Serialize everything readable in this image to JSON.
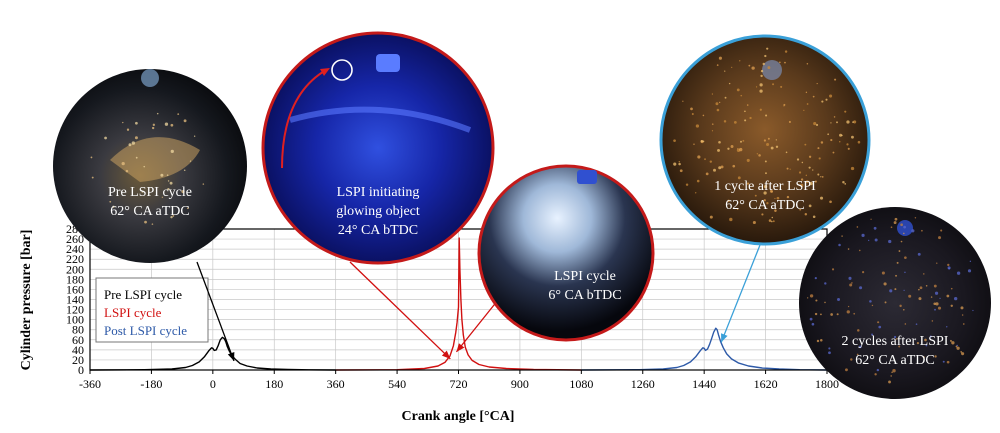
{
  "chart_data": {
    "type": "line",
    "title": "",
    "xlabel": "Crank angle [°CA]",
    "ylabel": "Cylinder pressure [bar]",
    "xlim": [
      -360,
      1800
    ],
    "ylim": [
      0,
      280
    ],
    "x_ticks": [
      -360,
      -180,
      0,
      180,
      360,
      540,
      720,
      900,
      1080,
      1260,
      1440,
      1620,
      1800
    ],
    "y_ticks": [
      0,
      20,
      40,
      60,
      80,
      100,
      120,
      140,
      160,
      180,
      200,
      220,
      240,
      260,
      280
    ],
    "grid": true,
    "legend_position": "left",
    "series": [
      {
        "name": "Pre LSPI cycle",
        "color": "#000000",
        "x": [
          -360,
          -200,
          -120,
          -80,
          -60,
          -40,
          -25,
          -12,
          -4,
          0,
          4,
          10,
          16,
          22,
          28,
          34,
          38,
          42,
          48,
          56,
          66,
          80,
          100,
          130,
          170,
          220,
          280,
          360
        ],
        "y": [
          0,
          0.5,
          2,
          5,
          9,
          16,
          26,
          38,
          44,
          43,
          39,
          40,
          49,
          60,
          65,
          62,
          56,
          47,
          38,
          29,
          21,
          13,
          8,
          4,
          2,
          1,
          0.3,
          0
        ]
      },
      {
        "name": "LSPI cycle",
        "color": "#d11010",
        "x": [
          360,
          540,
          620,
          660,
          680,
          695,
          705,
          712,
          716,
          720,
          722,
          724,
          727,
          730,
          734,
          740,
          748,
          760,
          780,
          810,
          860,
          940,
          1080
        ],
        "y": [
          0,
          0.5,
          3,
          8,
          15,
          28,
          48,
          75,
          95,
          125,
          262,
          200,
          140,
          100,
          70,
          45,
          30,
          19,
          11,
          6,
          3,
          1,
          0
        ]
      },
      {
        "name": "Post LSPI cycle",
        "color": "#2e5aa8",
        "x": [
          1080,
          1250,
          1320,
          1360,
          1380,
          1400,
          1415,
          1428,
          1436,
          1440,
          1444,
          1450,
          1456,
          1462,
          1468,
          1474,
          1478,
          1482,
          1488,
          1496,
          1506,
          1520,
          1540,
          1570,
          1610,
          1660,
          1720,
          1800
        ],
        "y": [
          0,
          0.5,
          2,
          5,
          9,
          16,
          26,
          38,
          44,
          43,
          39,
          42,
          51,
          63,
          75,
          83,
          80,
          70,
          57,
          44,
          32,
          22,
          14,
          8,
          4,
          2,
          0.5,
          0
        ]
      }
    ],
    "annotations": [
      {
        "id": "pre",
        "lines": [
          "Pre LSPI cycle",
          "62° CA aTDC"
        ],
        "ring": "none",
        "photo": "dark-orange",
        "target": [
          62,
          18
        ]
      },
      {
        "id": "glow",
        "lines": [
          "LSPI initiating",
          "glowing object",
          "24° CA bTDC"
        ],
        "ring": "#c41a1a",
        "photo": "blue",
        "target": [
          696,
          22
        ]
      },
      {
        "id": "lspi",
        "lines": [
          "LSPI cycle",
          "6° CA bTDC"
        ],
        "ring": "#c41a1a",
        "photo": "blue-white",
        "target": [
          714,
          36
        ]
      },
      {
        "id": "after1",
        "lines": [
          "1 cycle after LSPI",
          "62° CA aTDC"
        ],
        "ring": "#3aa0d8",
        "photo": "orange",
        "target": [
          1490,
          55
        ]
      },
      {
        "id": "after2",
        "lines": [
          "2 cycles after LSPI",
          "62° CA aTDC"
        ],
        "ring": "none",
        "photo": "dark-orange-blue",
        "target": null
      }
    ]
  }
}
